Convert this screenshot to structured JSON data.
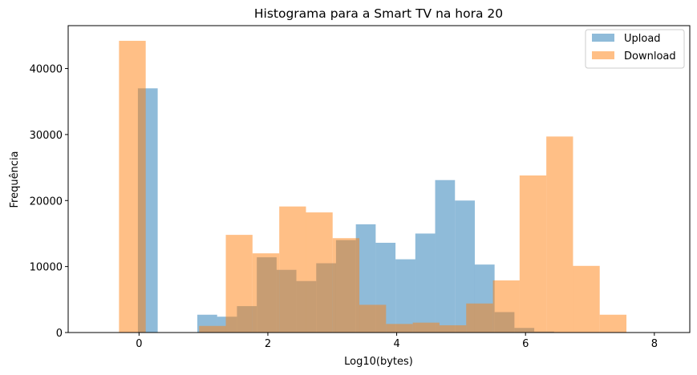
{
  "chart_data": {
    "type": "bar",
    "title": "Histograma para a Smart TV na hora 20",
    "xlabel": "Log10(bytes)",
    "ylabel": "Frequência",
    "xlim": [
      -1.1,
      8.55
    ],
    "ylim": [
      0,
      46500
    ],
    "xticks": [
      0,
      2,
      4,
      6,
      8
    ],
    "yticks": [
      0,
      10000,
      20000,
      30000,
      40000
    ],
    "legend_position": "top-right",
    "series": [
      {
        "name": "Upload",
        "color": "#1f77b4",
        "opacity": 0.5,
        "bin_width": 0.3077,
        "bins": [
          {
            "x0": -0.018,
            "value": 37000
          },
          {
            "x0": 0.905,
            "value": 2700
          },
          {
            "x0": 1.212,
            "value": 2400
          },
          {
            "x0": 1.52,
            "value": 4000
          },
          {
            "x0": 1.828,
            "value": 11400
          },
          {
            "x0": 2.135,
            "value": 9500
          },
          {
            "x0": 2.443,
            "value": 7800
          },
          {
            "x0": 2.751,
            "value": 10500
          },
          {
            "x0": 3.058,
            "value": 14000
          },
          {
            "x0": 3.366,
            "value": 16400
          },
          {
            "x0": 3.674,
            "value": 13600
          },
          {
            "x0": 3.982,
            "value": 11100
          },
          {
            "x0": 4.289,
            "value": 15000
          },
          {
            "x0": 4.597,
            "value": 23100
          },
          {
            "x0": 4.905,
            "value": 20000
          },
          {
            "x0": 5.212,
            "value": 10300
          },
          {
            "x0": 5.52,
            "value": 3100
          },
          {
            "x0": 5.828,
            "value": 700
          },
          {
            "x0": 6.135,
            "value": 150
          }
        ]
      },
      {
        "name": "Download",
        "color": "#ff7f0e",
        "opacity": 0.5,
        "bin_width": 0.4146,
        "bins": [
          {
            "x0": -0.311,
            "value": 44200
          },
          {
            "x0": 0.518,
            "value": 50
          },
          {
            "x0": 0.933,
            "value": 1000
          },
          {
            "x0": 1.347,
            "value": 14800
          },
          {
            "x0": 1.762,
            "value": 12000
          },
          {
            "x0": 2.177,
            "value": 19100
          },
          {
            "x0": 2.591,
            "value": 18200
          },
          {
            "x0": 3.006,
            "value": 14300
          },
          {
            "x0": 3.42,
            "value": 4200
          },
          {
            "x0": 3.835,
            "value": 1300
          },
          {
            "x0": 4.25,
            "value": 1500
          },
          {
            "x0": 4.664,
            "value": 1100
          },
          {
            "x0": 5.079,
            "value": 4400
          },
          {
            "x0": 5.494,
            "value": 7900
          },
          {
            "x0": 5.908,
            "value": 23800
          },
          {
            "x0": 6.323,
            "value": 29700
          },
          {
            "x0": 6.737,
            "value": 10100
          },
          {
            "x0": 7.152,
            "value": 2700
          }
        ]
      }
    ]
  }
}
